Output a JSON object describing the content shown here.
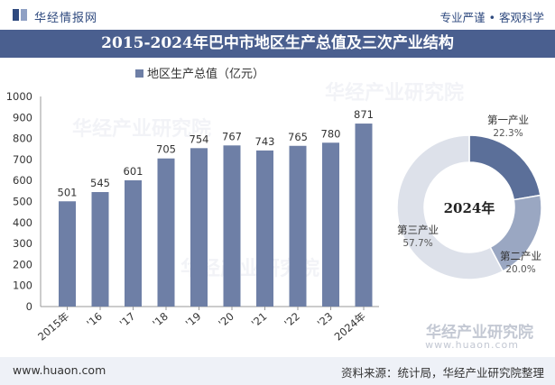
{
  "header": {
    "brand": "华经情报网",
    "slogan": "专业严谨 • 客观科学",
    "title": "2015-2024年巴中市地区生产总值及三次产业结构"
  },
  "chart_data": [
    {
      "type": "bar",
      "legend": "地区生产总值（亿元）",
      "categories": [
        "2015年",
        "'16",
        "'17",
        "'18",
        "'19",
        "'20",
        "'21",
        "'22",
        "'23",
        "2024年"
      ],
      "values": [
        501,
        545,
        601,
        705,
        754,
        767,
        743,
        765,
        780,
        871
      ],
      "ylim": [
        0,
        1000
      ],
      "yticks": [
        0,
        100,
        200,
        300,
        400,
        500,
        600,
        700,
        800,
        900,
        1000
      ],
      "color": "#6e7fa6",
      "grid": false
    },
    {
      "type": "pie",
      "center_label": "2024年",
      "slices": [
        {
          "name": "第一产业",
          "value": 22.3,
          "label": "22.3%",
          "color": "#5b6f99"
        },
        {
          "name": "第二产业",
          "value": 20.0,
          "label": "20.0%",
          "color": "#9aa7c2"
        },
        {
          "name": "第三产业",
          "value": 57.7,
          "label": "57.7%",
          "color": "#dde1ea"
        }
      ]
    }
  ],
  "footer": {
    "site": "www.huaon.com",
    "source": "资料来源：统计局，华经产业研究院整理",
    "brand": "华经产业研究院",
    "brand_url": "www.huaon.com"
  }
}
